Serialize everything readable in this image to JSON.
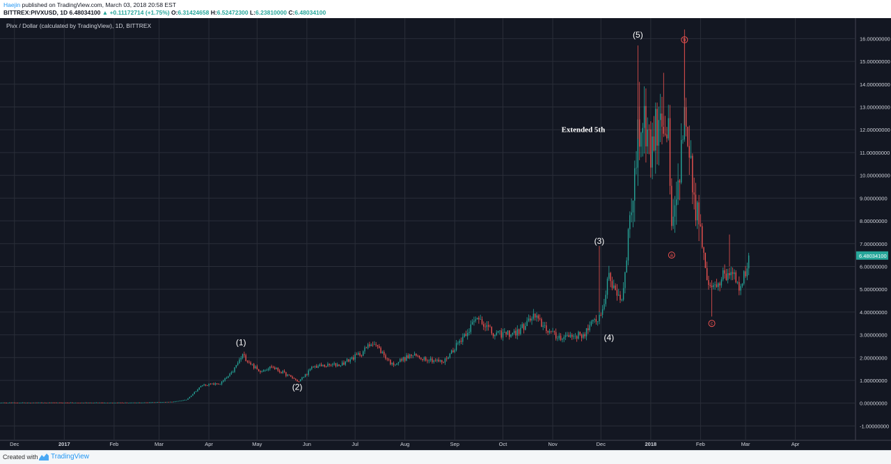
{
  "header": {
    "author": "Haejin",
    "published": "published on TradingView.com, March 03, 2018 20:58 EST",
    "symbol": "BITTREX:PIVXUSD, 1D",
    "last": "6.48034100",
    "change": "+0.11172714 (+1.75%)",
    "o_label": "O:",
    "o": "6.31424658",
    "h_label": "H:",
    "h": "6.52472300",
    "l_label": "L:",
    "l": "6.23810000",
    "c_label": "C:",
    "c": "6.48034100"
  },
  "footer": {
    "created_with": "Created with",
    "brand": "TradingView"
  },
  "colors": {
    "background": "#131722",
    "up": "#26a69a",
    "down": "#ef5350",
    "grid": "#2a2e39",
    "axis_text": "#d1d4dc",
    "price_tag": "#26a69a"
  },
  "chart_data": {
    "type": "candlestick",
    "title": "Pivx / Dollar (calculated by TradingView), 1D, BITTREX",
    "y_range": [
      -1.6,
      16.9
    ],
    "y_ticks": [
      "-1.00000000",
      "0.00000000",
      "1.00000000",
      "2.00000000",
      "3.00000000",
      "4.00000000",
      "5.00000000",
      "6.00000000",
      "7.00000000",
      "8.00000000",
      "9.00000000",
      "10.00000000",
      "11.00000000",
      "12.00000000",
      "13.00000000",
      "14.00000000",
      "15.00000000",
      "16.00000000"
    ],
    "x_range": [
      "2016-11-22",
      "2018-05-08"
    ],
    "x_ticks": [
      {
        "date": "2016-12-01",
        "label": "Dec"
      },
      {
        "date": "2017-01-01",
        "label": "2017"
      },
      {
        "date": "2017-02-01",
        "label": "Feb"
      },
      {
        "date": "2017-03-01",
        "label": "Mar"
      },
      {
        "date": "2017-04-01",
        "label": "Apr"
      },
      {
        "date": "2017-05-01",
        "label": "May"
      },
      {
        "date": "2017-06-01",
        "label": "Jun"
      },
      {
        "date": "2017-07-01",
        "label": "Jul"
      },
      {
        "date": "2017-08-01",
        "label": "Aug"
      },
      {
        "date": "2017-09-01",
        "label": "Sep"
      },
      {
        "date": "2017-10-01",
        "label": "Oct"
      },
      {
        "date": "2017-11-01",
        "label": "Nov"
      },
      {
        "date": "2017-12-01",
        "label": "Dec"
      },
      {
        "date": "2018-01-01",
        "label": "2018"
      },
      {
        "date": "2018-02-01",
        "label": "Feb"
      },
      {
        "date": "2018-03-01",
        "label": "Mar"
      },
      {
        "date": "2018-04-01",
        "label": "Apr"
      }
    ],
    "price_path": [
      [
        "2016-11-22",
        0.02
      ],
      [
        "2017-02-15",
        0.02
      ],
      [
        "2017-03-10",
        0.06
      ],
      [
        "2017-03-18",
        0.15
      ],
      [
        "2017-03-28",
        0.8
      ],
      [
        "2017-04-08",
        0.85
      ],
      [
        "2017-04-15",
        1.3
      ],
      [
        "2017-04-22",
        2.1
      ],
      [
        "2017-05-02",
        1.4
      ],
      [
        "2017-05-10",
        1.6
      ],
      [
        "2017-05-18",
        1.3
      ],
      [
        "2017-05-27",
        0.95
      ],
      [
        "2017-06-05",
        1.6
      ],
      [
        "2017-06-22",
        1.7
      ],
      [
        "2017-07-05",
        2.2
      ],
      [
        "2017-07-12",
        2.7
      ],
      [
        "2017-07-24",
        1.7
      ],
      [
        "2017-08-05",
        2.1
      ],
      [
        "2017-08-25",
        1.8
      ],
      [
        "2017-09-08",
        3.1
      ],
      [
        "2017-09-16",
        3.8
      ],
      [
        "2017-09-25",
        3.0
      ],
      [
        "2017-10-10",
        3.1
      ],
      [
        "2017-10-20",
        3.8
      ],
      [
        "2017-11-03",
        2.9
      ],
      [
        "2017-11-20",
        3.0
      ],
      [
        "2017-11-27",
        3.6
      ],
      [
        "2017-12-01",
        3.9
      ],
      [
        "2017-12-06",
        5.5
      ],
      [
        "2017-12-10",
        5.0
      ],
      [
        "2017-12-14",
        4.5
      ],
      [
        "2017-12-19",
        8.0
      ],
      [
        "2017-12-24",
        11.5
      ],
      [
        "2017-12-28",
        12.8
      ],
      [
        "2018-01-01",
        11.0
      ],
      [
        "2018-01-07",
        13.0
      ],
      [
        "2018-01-12",
        11.5
      ],
      [
        "2018-01-14",
        7.3
      ],
      [
        "2018-01-18",
        9.5
      ],
      [
        "2018-01-22",
        12.0
      ],
      [
        "2018-01-27",
        9.5
      ],
      [
        "2018-02-01",
        7.5
      ],
      [
        "2018-02-05",
        5.2
      ],
      [
        "2018-02-10",
        5.3
      ],
      [
        "2018-02-16",
        5.6
      ],
      [
        "2018-02-21",
        5.9
      ],
      [
        "2018-02-26",
        5.0
      ],
      [
        "2018-03-03",
        6.48
      ]
    ],
    "wave_labels": [
      {
        "text": "(1)",
        "date": "2017-04-21",
        "price": 2.55
      },
      {
        "text": "(2)",
        "date": "2017-05-26",
        "price": 0.58
      },
      {
        "text": "(3)",
        "date": "2017-11-30",
        "price": 7.0
      },
      {
        "text": "(4)",
        "date": "2017-12-06",
        "price": 2.75
      },
      {
        "text": "(5)",
        "date": "2017-12-24",
        "price": 16.05
      }
    ],
    "corrective_labels": [
      {
        "text": "a",
        "date": "2018-01-14",
        "price": 6.5
      },
      {
        "text": "b",
        "date": "2018-01-22",
        "price": 15.95
      },
      {
        "text": "c",
        "date": "2018-02-08",
        "price": 3.5
      }
    ],
    "annotation": {
      "text": "Extended 5th",
      "date": "2017-11-20",
      "price": 11.9
    },
    "last_price": {
      "price": 6.48,
      "label": "6.48034100"
    }
  }
}
